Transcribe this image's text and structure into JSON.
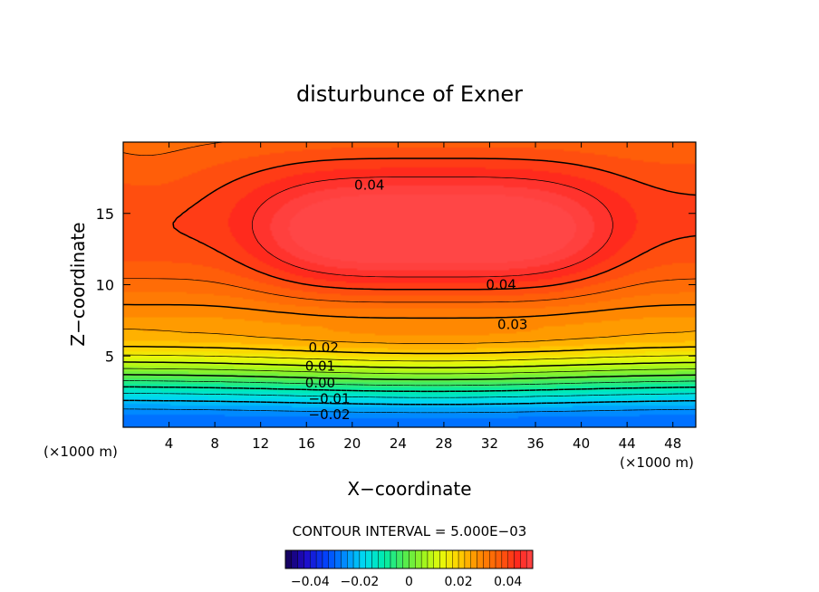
{
  "chart_data": {
    "type": "heatmap",
    "title": "disturbunce of Exner",
    "xlabel": "X−coordinate",
    "ylabel": "Z−coordinate",
    "x_unit_left": "(×1000 m)",
    "x_unit_right": "(×1000 m)",
    "xlim": [
      0,
      50
    ],
    "ylim": [
      0,
      20
    ],
    "xticks": [
      4,
      8,
      12,
      16,
      20,
      24,
      28,
      32,
      36,
      40,
      44,
      48
    ],
    "yticks": [
      5,
      10,
      15
    ],
    "contour_interval_text": "CONTOUR INTERVAL = 5.000E−03",
    "contour_interval": 0.005,
    "contour_labels": [
      {
        "text": "0.04",
        "x": 21.5,
        "z": 17.0
      },
      {
        "text": "0.04",
        "x": 33.0,
        "z": 10.0
      },
      {
        "text": "0.03",
        "x": 34.0,
        "z": 7.2
      },
      {
        "text": "0.02",
        "x": 17.5,
        "z": 5.6
      },
      {
        "text": "0.01",
        "x": 17.2,
        "z": 4.3
      },
      {
        "text": "0.00",
        "x": 17.2,
        "z": 3.1
      },
      {
        "text": "−0.01",
        "x": 18.0,
        "z": 2.0
      },
      {
        "text": "−0.02",
        "x": 18.0,
        "z": 0.9
      }
    ],
    "colorbar": {
      "min": -0.05,
      "max": 0.05,
      "tick_values": [
        -0.04,
        -0.02,
        0,
        0.02,
        0.04
      ],
      "tick_labels": [
        "−0.04",
        "−0.02",
        "0",
        "0.02",
        "0.04"
      ]
    },
    "field_description": {
      "surface_value": -0.03,
      "level_z7_value": 0.025,
      "max_value": 0.049,
      "max_center": {
        "x": 27,
        "z": 13.5
      },
      "top_value": 0.035
    }
  }
}
